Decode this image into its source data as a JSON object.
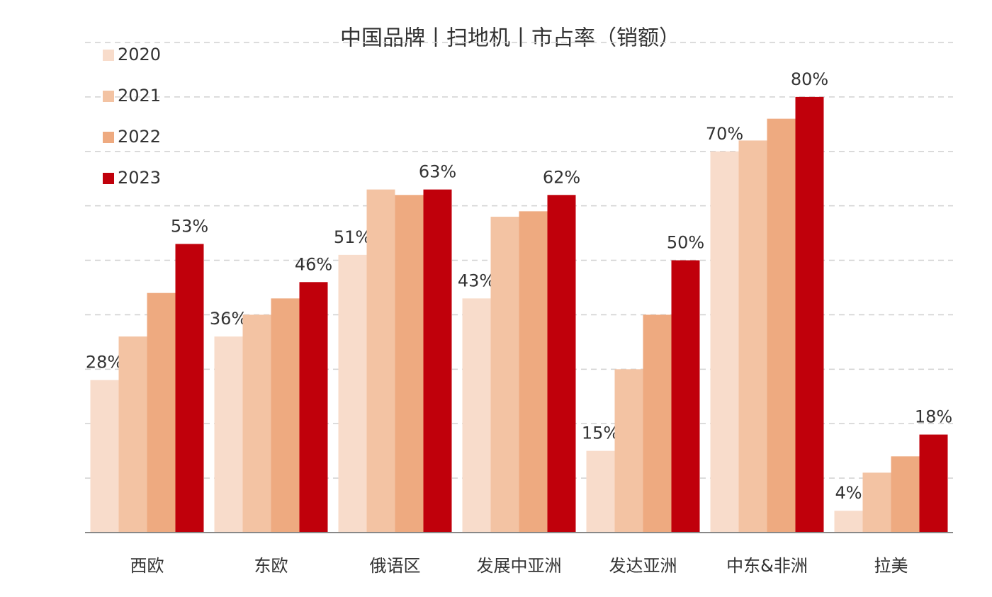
{
  "chart_data": {
    "type": "bar",
    "title": "中国品牌丨扫地机丨市占率（销额）",
    "categories": [
      "西欧",
      "东欧",
      "俄语区",
      "发展中亚洲",
      "发达亚洲",
      "中东&非洲",
      "拉美"
    ],
    "series": [
      {
        "name": "2020",
        "color": "#f8dccb",
        "values": [
          28,
          36,
          51,
          43,
          15,
          70,
          4
        ],
        "value_labels": [
          "28%",
          "36%",
          "51%",
          "43%",
          "15%",
          "70%",
          "4%"
        ]
      },
      {
        "name": "2021",
        "color": "#f3c3a3",
        "values": [
          36,
          40,
          63,
          58,
          30,
          72,
          11
        ]
      },
      {
        "name": "2022",
        "color": "#eeaa80",
        "values": [
          44,
          43,
          62,
          59,
          40,
          76,
          14
        ]
      },
      {
        "name": "2023",
        "color": "#c0000b",
        "values": [
          53,
          46,
          63,
          62,
          50,
          80,
          18
        ],
        "value_labels": [
          "53%",
          "46%",
          "63%",
          "62%",
          "50%",
          "80%",
          "18%"
        ]
      }
    ],
    "ylim": [
      0,
      90
    ],
    "yticks": [
      0,
      10,
      20,
      30,
      40,
      50,
      60,
      70,
      80,
      90
    ],
    "grid": true,
    "legend": "top-left"
  }
}
